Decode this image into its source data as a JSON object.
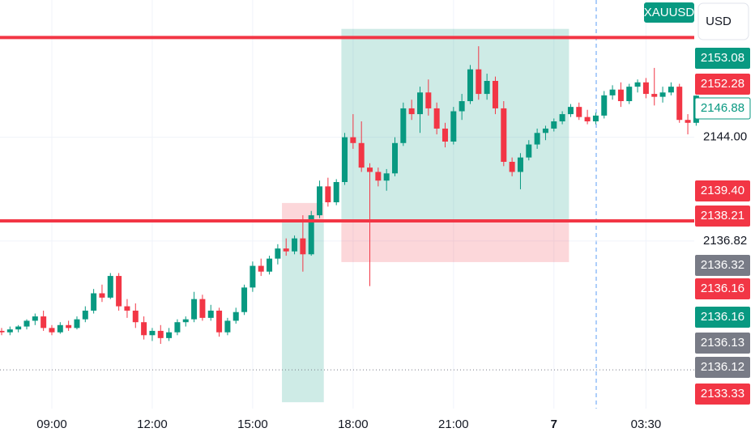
{
  "chart_data": {
    "type": "candlestick",
    "symbol": "XAUUSD",
    "currency": "USD",
    "categories": [
      null,
      null,
      null,
      null,
      null,
      null,
      "09:00",
      null,
      null,
      null,
      null,
      null,
      null,
      null,
      null,
      null,
      null,
      null,
      "12:00",
      null,
      null,
      null,
      null,
      null,
      null,
      null,
      null,
      null,
      null,
      null,
      "15:00",
      null,
      null,
      null,
      null,
      null,
      null,
      null,
      null,
      null,
      null,
      null,
      "18:00",
      null,
      null,
      null,
      null,
      null,
      null,
      null,
      null,
      null,
      null,
      null,
      "21:00",
      null,
      null,
      null,
      null,
      null,
      null,
      null,
      null,
      null,
      null,
      null,
      "7",
      null,
      null,
      null,
      null,
      null,
      null,
      null,
      null,
      null,
      null,
      "03:30",
      null,
      null,
      null,
      null,
      null,
      null
    ],
    "open": [
      2130.6,
      2130.5,
      2130.7,
      2130.9,
      2131.3,
      2131.6,
      2130.8,
      2130.5,
      2131.0,
      2130.8,
      2131.4,
      2132.0,
      2133.2,
      2132.9,
      2134.4,
      2132.3,
      2132.0,
      2131.2,
      2130.3,
      2130.6,
      2130.1,
      2130.5,
      2131.2,
      2131.4,
      2132.8,
      2131.5,
      2132.0,
      2130.5,
      2131.3,
      2131.9,
      2133.6,
      2135.1,
      2134.7,
      2135.6,
      2136.3,
      2136.1,
      2137.0,
      2135.9,
      2138.6,
      2140.6,
      2139.5,
      2140.9,
      2144.0,
      2143.6,
      2141.9,
      2141.6,
      2141.0,
      2141.5,
      2143.6,
      2146.0,
      2145.6,
      2147.1,
      2146.0,
      2144.6,
      2143.7,
      2145.8,
      2146.5,
      2148.7,
      2147.0,
      2147.9,
      2146.0,
      2142.3,
      2141.6,
      2142.6,
      2143.5,
      2144.3,
      2144.6,
      2145.1,
      2145.6,
      2146.1,
      2145.4,
      2145.1,
      2145.5,
      2146.9,
      2147.3,
      2146.5,
      2147.5,
      2147.8,
      2147.0,
      2146.8,
      2147.1,
      2147.5,
      2145.2,
      2145.0
    ],
    "high": [
      2130.8,
      2130.9,
      2131.0,
      2131.4,
      2131.8,
      2132.0,
      2131.0,
      2131.2,
      2131.3,
      2131.6,
      2132.3,
      2133.5,
      2133.8,
      2134.6,
      2134.6,
      2132.8,
      2132.5,
      2131.6,
      2130.8,
      2131.0,
      2130.8,
      2131.4,
      2131.6,
      2133.3,
      2133.1,
      2132.4,
      2132.2,
      2131.5,
      2132.2,
      2133.8,
      2135.4,
      2135.6,
      2135.8,
      2136.6,
      2137.0,
      2137.2,
      2138.6,
      2138.9,
      2141.0,
      2141.2,
      2141.1,
      2144.3,
      2145.6,
      2145.1,
      2142.2,
      2141.9,
      2141.8,
      2144.0,
      2146.4,
      2146.6,
      2147.5,
      2148.0,
      2146.4,
      2145.0,
      2146.1,
      2147.0,
      2149.0,
      2150.3,
      2148.4,
      2148.2,
      2146.5,
      2142.6,
      2142.9,
      2143.8,
      2144.6,
      2144.8,
      2145.3,
      2145.8,
      2146.3,
      2146.4,
      2145.9,
      2145.7,
      2147.2,
      2147.6,
      2147.8,
      2147.7,
      2148.0,
      2148.1,
      2148.8,
      2147.5,
      2147.8,
      2147.7,
      2145.6,
      2146.9
    ],
    "low": [
      2130.3,
      2130.3,
      2130.5,
      2130.7,
      2131.0,
      2130.6,
      2130.3,
      2130.4,
      2130.6,
      2130.7,
      2131.2,
      2131.8,
      2132.6,
      2132.8,
      2132.0,
      2131.5,
      2130.8,
      2130.0,
      2129.9,
      2129.7,
      2129.9,
      2130.3,
      2130.9,
      2131.2,
      2131.3,
      2131.3,
      2130.2,
      2130.3,
      2131.1,
      2131.7,
      2133.3,
      2134.4,
      2134.5,
      2135.2,
      2135.8,
      2135.9,
      2134.7,
      2135.8,
      2138.4,
      2139.2,
      2139.3,
      2140.7,
      2143.2,
      2141.6,
      2133.7,
      2140.6,
      2140.3,
      2141.3,
      2143.4,
      2145.2,
      2144.3,
      2145.5,
      2144.2,
      2143.3,
      2143.5,
      2145.2,
      2146.3,
      2146.6,
      2146.6,
      2145.6,
      2142.0,
      2141.3,
      2140.4,
      2142.4,
      2143.2,
      2143.8,
      2144.4,
      2144.9,
      2145.4,
      2145.2,
      2144.9,
      2144.9,
      2145.3,
      2146.6,
      2146.1,
      2146.3,
      2147.1,
      2146.7,
      2146.2,
      2146.4,
      2146.9,
      2145.0,
      2144.2,
      2144.8
    ],
    "close": [
      2130.5,
      2130.7,
      2130.9,
      2131.3,
      2131.6,
      2130.8,
      2130.5,
      2131.0,
      2130.8,
      2131.4,
      2132.0,
      2133.2,
      2132.9,
      2134.4,
      2132.3,
      2132.0,
      2131.2,
      2130.3,
      2130.6,
      2130.1,
      2130.5,
      2131.2,
      2131.4,
      2132.8,
      2131.5,
      2132.0,
      2130.5,
      2131.3,
      2131.9,
      2133.6,
      2135.1,
      2134.7,
      2135.6,
      2136.3,
      2136.1,
      2137.0,
      2135.9,
      2138.6,
      2140.6,
      2139.5,
      2140.9,
      2144.0,
      2143.6,
      2141.9,
      2141.6,
      2141.0,
      2141.5,
      2143.6,
      2146.0,
      2145.6,
      2147.1,
      2146.0,
      2144.6,
      2143.7,
      2145.8,
      2146.5,
      2148.7,
      2147.0,
      2147.9,
      2146.0,
      2142.3,
      2141.6,
      2142.6,
      2143.5,
      2144.3,
      2144.6,
      2145.1,
      2145.6,
      2146.1,
      2145.4,
      2145.1,
      2145.5,
      2146.9,
      2147.3,
      2146.5,
      2147.5,
      2147.8,
      2147.0,
      2146.8,
      2147.1,
      2147.5,
      2145.2,
      2145.0,
      2146.88
    ],
    "up_color": "#089981",
    "down_color": "#f23645",
    "ylim": [
      2125.5,
      2153.5
    ],
    "yticks": [
      {
        "value": 2144,
        "label": "2144.00"
      },
      2136.82
    ],
    "horizontal_lines": [
      2150.9,
      2138.21
    ],
    "dotted_line": 2127.9,
    "positions": [
      {
        "entry": 2138.21,
        "stop": 2139.45,
        "target": 2125.66
      },
      {
        "entry": 2138.21,
        "stop": 2135.36,
        "target": 2151.5
      }
    ],
    "price_labels": [
      {
        "value": 2153.08,
        "color": "#089981"
      },
      {
        "value": 2152.28,
        "color": "#f23645"
      },
      {
        "value": 2146.88,
        "color": "#ffffff"
      },
      {
        "value": 2139.4,
        "color": "#f23645"
      },
      {
        "value": 2138.21,
        "color": "#f23645"
      },
      {
        "value": 2136.32,
        "color": "#787b86"
      },
      {
        "value": 2136.16,
        "color": "#f23645"
      },
      {
        "value": 2136.16,
        "color": "#089981"
      },
      {
        "value": 2136.13,
        "color": "#787b86"
      },
      {
        "value": 2136.12,
        "color": "#787b86"
      },
      {
        "value": 2133.33,
        "color": "#f23645"
      }
    ]
  }
}
